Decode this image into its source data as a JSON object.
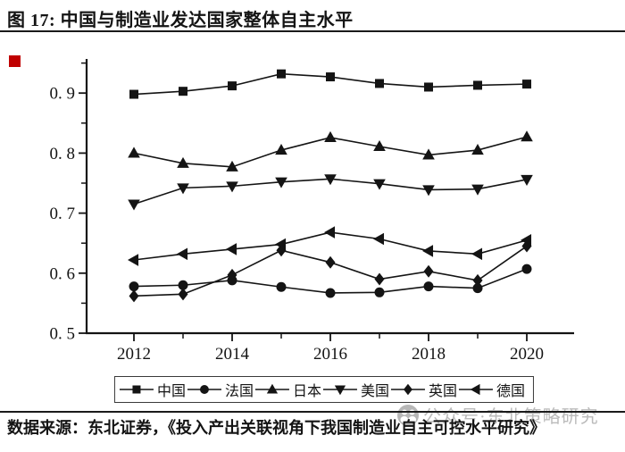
{
  "header": {
    "title": "图 17: 中国与制造业发达国家整体自主水平"
  },
  "footer": {
    "source": "数据来源：东北证券，《投入产出关联视角下我国制造业自主可控水平研究》",
    "watermark": "公众号·东北策略研究"
  },
  "colors": {
    "ink": "#141414",
    "accent_red": "#c00000",
    "watermark_gray": "#b4b4b4"
  },
  "chart_data": {
    "type": "line",
    "title": "",
    "xlabel": "",
    "ylabel": "",
    "grid": false,
    "legend_position": "bottom-outside",
    "x": [
      2012,
      2013,
      2014,
      2015,
      2016,
      2017,
      2018,
      2019,
      2020
    ],
    "series": [
      {
        "name": "中国",
        "marker": "square",
        "values": [
          0.898,
          0.903,
          0.912,
          0.932,
          0.927,
          0.916,
          0.91,
          0.913,
          0.915
        ]
      },
      {
        "name": "法国",
        "marker": "circle",
        "values": [
          0.578,
          0.58,
          0.588,
          0.577,
          0.567,
          0.568,
          0.578,
          0.575,
          0.607
        ]
      },
      {
        "name": "日本",
        "marker": "triangle-up",
        "values": [
          0.8,
          0.783,
          0.777,
          0.805,
          0.826,
          0.811,
          0.797,
          0.805,
          0.827
        ]
      },
      {
        "name": "美国",
        "marker": "triangle-down",
        "values": [
          0.715,
          0.742,
          0.745,
          0.752,
          0.757,
          0.749,
          0.739,
          0.74,
          0.756
        ]
      },
      {
        "name": "英国",
        "marker": "diamond",
        "values": [
          0.562,
          0.565,
          0.597,
          0.638,
          0.618,
          0.59,
          0.603,
          0.588,
          0.645
        ]
      },
      {
        "name": "德国",
        "marker": "triangle-left",
        "values": [
          0.622,
          0.632,
          0.64,
          0.648,
          0.668,
          0.657,
          0.637,
          0.632,
          0.655
        ]
      }
    ],
    "ylim": [
      0.5,
      0.955
    ],
    "yticks": {
      "values": [
        0.9,
        0.8,
        0.7,
        0.6,
        0.5
      ],
      "labels": [
        "0. 9",
        "0. 8",
        "0. 7",
        "0. 6",
        "0. 5"
      ]
    },
    "yticks_minor": [
      0.95,
      0.85,
      0.75,
      0.65,
      0.55
    ],
    "xticks_major": [
      2012,
      2014,
      2016,
      2018,
      2020
    ],
    "xticks_minor": [
      2013,
      2015,
      2017,
      2019
    ]
  }
}
